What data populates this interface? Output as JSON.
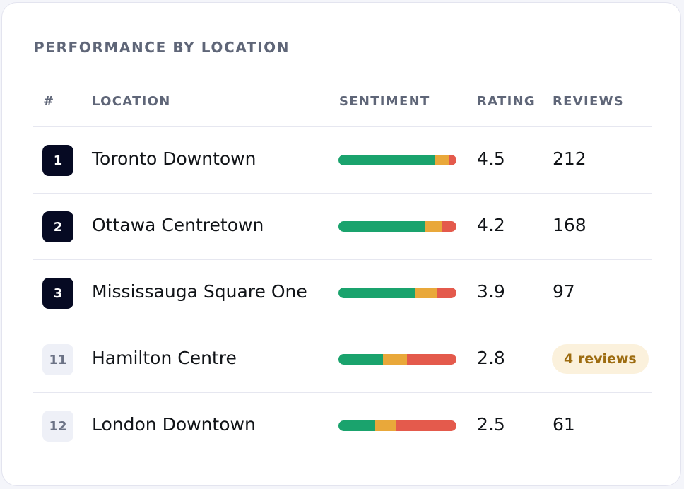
{
  "card": {
    "title": "PERFORMANCE BY LOCATION"
  },
  "columns": {
    "rank": "#",
    "location": "LOCATION",
    "sentiment": "SENTIMENT",
    "rating": "RATING",
    "reviews": "REVIEWS"
  },
  "colors": {
    "positive": "#1aa36d",
    "neutral": "#e9a83a",
    "negative": "#e45a4c",
    "rank_dark": "#060a23",
    "rank_muted": "#eef0f7",
    "low_reviews_badge": "#fbf1dc"
  },
  "rows": [
    {
      "rank": "1",
      "rank_style": "dark",
      "location": "Toronto Downtown",
      "sentiment": {
        "positive": 0.82,
        "neutral": 0.12,
        "negative": 0.06
      },
      "rating": "4.5",
      "reviews": "212",
      "reviews_badge": null
    },
    {
      "rank": "2",
      "rank_style": "dark",
      "location": "Ottawa Centretown",
      "sentiment": {
        "positive": 0.73,
        "neutral": 0.15,
        "negative": 0.12
      },
      "rating": "4.2",
      "reviews": "168",
      "reviews_badge": null
    },
    {
      "rank": "3",
      "rank_style": "dark",
      "location": "Mississauga Square One",
      "sentiment": {
        "positive": 0.65,
        "neutral": 0.18,
        "negative": 0.17
      },
      "rating": "3.9",
      "reviews": "97",
      "reviews_badge": null
    },
    {
      "rank": "11",
      "rank_style": "muted",
      "location": "Hamilton Centre",
      "sentiment": {
        "positive": 0.38,
        "neutral": 0.2,
        "negative": 0.42
      },
      "rating": "2.8",
      "reviews": null,
      "reviews_badge": "4 reviews"
    },
    {
      "rank": "12",
      "rank_style": "muted",
      "location": "London Downtown",
      "sentiment": {
        "positive": 0.31,
        "neutral": 0.18,
        "negative": 0.51
      },
      "rating": "2.5",
      "reviews": "61",
      "reviews_badge": null
    }
  ]
}
